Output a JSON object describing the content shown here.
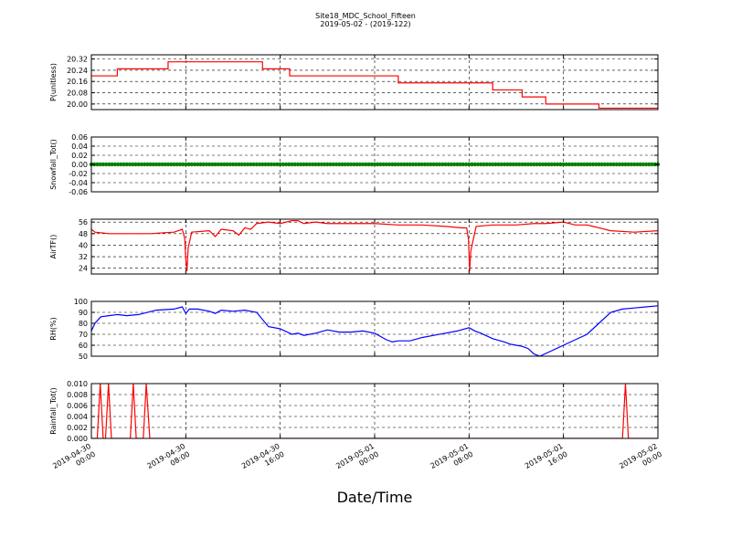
{
  "title": {
    "line1": "Site18_MDC_School_Fifteen",
    "line2": "2019-05-02 - (2019-122)"
  },
  "xlabel": "Date/Time",
  "x_ticks": [
    {
      "t": 0,
      "line1": "2019-04-30",
      "line2": "00:00"
    },
    {
      "t": 8,
      "line1": "2019-04-30",
      "line2": "08:00"
    },
    {
      "t": 16,
      "line1": "2019-04-30",
      "line2": "16:00"
    },
    {
      "t": 24,
      "line1": "2019-05-01",
      "line2": "00:00"
    },
    {
      "t": 32,
      "line1": "2019-05-01",
      "line2": "08:00"
    },
    {
      "t": 40,
      "line1": "2019-05-01",
      "line2": "16:00"
    },
    {
      "t": 48,
      "line1": "2019-05-02",
      "line2": "00:00"
    }
  ],
  "colors": {
    "red": "#ff0000",
    "green": "#008000",
    "blue": "#0000ff"
  },
  "chart_data": [
    {
      "type": "line",
      "ylabel": "P(unitless)",
      "xlim": [
        "2019-04-30 00:00",
        "2019-05-02 00:00"
      ],
      "ylim": [
        19.96,
        20.35
      ],
      "yticks": [
        "20.00",
        "20.08",
        "20.16",
        "20.24",
        "20.32"
      ],
      "grid": true,
      "color": "#ff0000",
      "step": true,
      "x": [
        0,
        2.2,
        6.5,
        14.5,
        16.8,
        26,
        32.4,
        34,
        36.5,
        38.5,
        43,
        48
      ],
      "values": [
        20.2,
        20.25,
        20.3,
        20.25,
        20.2,
        20.15,
        20.15,
        20.1,
        20.05,
        20.0,
        19.97,
        19.97
      ]
    },
    {
      "type": "line",
      "ylabel": "Snowfall_Tot()",
      "xlim": [
        "2019-04-30 00:00",
        "2019-05-02 00:00"
      ],
      "ylim": [
        -0.06,
        0.06
      ],
      "yticks": [
        "-0.06",
        "-0.04",
        "-0.02",
        "0.00",
        "0.02",
        "0.04",
        "0.06"
      ],
      "grid": true,
      "color": "#008000",
      "markers": true,
      "x": [
        0,
        48
      ],
      "values": [
        0,
        0
      ]
    },
    {
      "type": "line",
      "ylabel": "AirTF()",
      "xlim": [
        "2019-04-30 00:00",
        "2019-05-02 00:00"
      ],
      "ylim": [
        20,
        58
      ],
      "yticks": [
        "24",
        "32",
        "40",
        "48",
        "56"
      ],
      "grid": true,
      "color": "#ff0000",
      "x": [
        0,
        0.3,
        1.5,
        3,
        5,
        7,
        7.7,
        7.9,
        8.0,
        8.1,
        8.2,
        8.5,
        10,
        10.5,
        11,
        12,
        12.5,
        13,
        13.5,
        14,
        15,
        16,
        17,
        17.5,
        18,
        19,
        20,
        22,
        24,
        26,
        28,
        30,
        31.4,
        31.8,
        31.95,
        32.05,
        32.15,
        32.6,
        34,
        36,
        37.5,
        38.5,
        40,
        41,
        42,
        42.5,
        43,
        44,
        46,
        48
      ],
      "values": [
        51,
        49,
        48,
        48,
        48,
        49,
        51,
        45,
        30,
        22,
        38,
        49,
        50,
        46,
        51,
        50,
        47,
        52,
        51,
        55,
        56,
        55,
        57,
        57,
        55,
        56,
        55,
        55,
        55,
        54,
        54,
        53,
        52,
        52,
        44,
        22,
        36,
        53,
        54,
        54,
        55,
        55,
        56,
        54,
        54,
        53,
        52,
        50,
        49,
        50
      ]
    },
    {
      "type": "line",
      "ylabel": "RH(%)",
      "xlim": [
        "2019-04-30 00:00",
        "2019-05-02 00:00"
      ],
      "ylim": [
        50,
        100
      ],
      "yticks": [
        "50",
        "60",
        "70",
        "80",
        "90",
        "100"
      ],
      "grid": true,
      "color": "#0000ff",
      "x": [
        0,
        0.3,
        0.8,
        1.5,
        2.2,
        3,
        4,
        5.5,
        7,
        7.7,
        8.0,
        8.3,
        9,
        10,
        10.5,
        11,
        12,
        13,
        13.5,
        14,
        15,
        16,
        17,
        17.5,
        18,
        19,
        20,
        21,
        22,
        23,
        24,
        25,
        25.5,
        26,
        27,
        28,
        29,
        30,
        31,
        32,
        32.5,
        33,
        34,
        35,
        35.5,
        36,
        36.5,
        37,
        37.5,
        38,
        39,
        40,
        41,
        42,
        43,
        44,
        45,
        46,
        47,
        48
      ],
      "values": [
        73,
        80,
        86,
        87,
        88,
        87,
        88,
        92,
        93,
        95,
        89,
        93,
        93,
        91,
        89,
        92,
        91,
        92,
        91,
        90,
        77,
        75,
        70,
        71,
        69,
        71,
        74,
        72,
        72,
        73,
        71,
        65,
        63,
        64,
        64,
        67,
        69,
        71,
        73,
        76,
        73,
        71,
        66,
        63,
        61,
        60,
        59,
        57,
        52,
        50,
        55,
        60,
        65,
        70,
        80,
        90,
        93,
        94,
        95,
        96
      ]
    },
    {
      "type": "line",
      "ylabel": "Rainfall_Tot()",
      "xlim": [
        "2019-04-30 00:00",
        "2019-05-02 00:00"
      ],
      "ylim": [
        0,
        0.01
      ],
      "yticks": [
        "0.000",
        "0.002",
        "0.004",
        "0.006",
        "0.008",
        "0.010"
      ],
      "grid": true,
      "color": "#ff0000",
      "x": [
        0,
        0.5,
        0.75,
        1.0,
        1.2,
        1.45,
        1.7,
        3.3,
        3.55,
        3.8,
        4.4,
        4.65,
        4.95,
        45.0,
        45.25,
        45.5,
        48
      ],
      "values": [
        0,
        0,
        0.01,
        0,
        0,
        0.01,
        0,
        0,
        0.01,
        0,
        0,
        0.01,
        0,
        0,
        0.01,
        0,
        0
      ]
    }
  ]
}
